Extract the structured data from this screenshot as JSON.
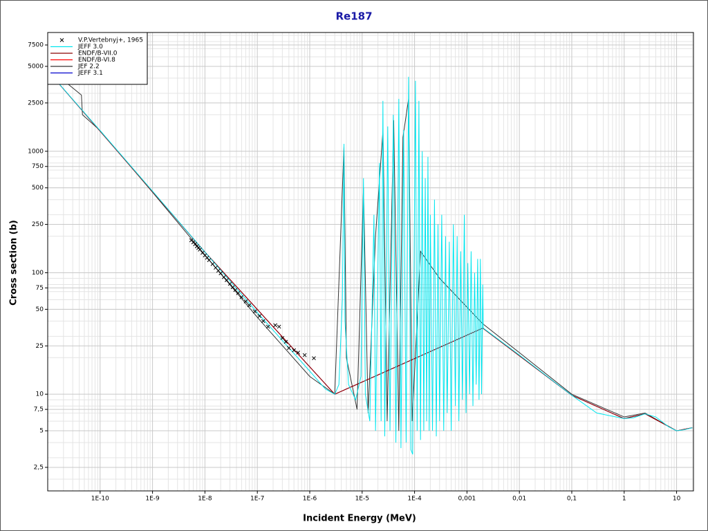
{
  "chart_data": {
    "type": "line",
    "title": "Re187",
    "x_label": "Incident Energy (MeV)",
    "y_label": "Cross section (b)",
    "x_log": true,
    "y_log": true,
    "grid": true,
    "legend": "upper left",
    "xlim": [
      1e-11,
      21
    ],
    "ylim": [
      1.6,
      9500
    ],
    "xticks": [
      {
        "value": 1e-10,
        "label": "1E-10"
      },
      {
        "value": 1e-09,
        "label": "1E-9"
      },
      {
        "value": 1e-08,
        "label": "1E-8"
      },
      {
        "value": 1e-07,
        "label": "1E-7"
      },
      {
        "value": 1e-06,
        "label": "1E-6"
      },
      {
        "value": 1e-05,
        "label": "1E-5"
      },
      {
        "value": 0.0001,
        "label": "1E-4"
      },
      {
        "value": 0.001,
        "label": "0,001"
      },
      {
        "value": 0.01,
        "label": "0,01"
      },
      {
        "value": 0.1,
        "label": "0,1"
      },
      1,
      10
    ],
    "yticks": [
      {
        "value": 2.5,
        "label": "2,5"
      },
      5,
      {
        "value": 7.5,
        "label": "7,5"
      },
      10,
      25,
      50,
      75,
      100,
      250,
      500,
      750,
      1000,
      2500,
      5000,
      7500
    ],
    "series": [
      {
        "name": "V.P.Vertebnyj+, 1965",
        "type": "scatter",
        "marker": "x",
        "color": "#000000",
        "x": [
          5.5e-09,
          6e-09,
          6.5e-09,
          7e-09,
          7.5e-09,
          8e-09,
          9e-09,
          1e-08,
          1.1e-08,
          1.2e-08,
          1.4e-08,
          1.6e-08,
          1.8e-08,
          2e-08,
          2.3e-08,
          2.6e-08,
          3e-08,
          3.4e-08,
          3.8e-08,
          4.3e-08,
          5e-08,
          6e-08,
          7e-08,
          9e-08,
          1.1e-07,
          1.3e-07,
          1.6e-07,
          2.2e-07,
          2.6e-07,
          3e-07,
          3.5e-07,
          4e-07,
          5e-07,
          6e-07,
          8e-07,
          1.2e-06
        ],
        "values": [
          185,
          178,
          172,
          165,
          160,
          155,
          146,
          139,
          133,
          127,
          118,
          110,
          104,
          99,
          92,
          87,
          81,
          76,
          72,
          68,
          63,
          58,
          54,
          48,
          44,
          40,
          36,
          37,
          36,
          29,
          27,
          24,
          23,
          22,
          21,
          19.8
        ]
      },
      {
        "name": "JEFF 3.0",
        "type": "line",
        "color": "#00e5ee",
        "x": [
          1.2e-11,
          1e-10,
          1e-09,
          1e-08,
          1e-07,
          1e-06,
          2e-06,
          3e-06,
          3.6e-06,
          4.2e-06,
          4.5e-06,
          4.7e-06,
          5.5e-06,
          7.5e-06,
          9.5e-06,
          1.06e-05,
          1.15e-05,
          1.4e-05,
          1.68e-05,
          1.8e-05,
          2.14e-05,
          2.3e-05,
          2.49e-05,
          2.7e-05,
          3.08e-05,
          3.4e-05,
          3.93e-05,
          4.4e-05,
          5.01e-05,
          5.5e-05,
          6.2e-05,
          6.9e-05,
          7.69e-05,
          8.5e-05,
          9.2e-05,
          0.000104,
          0.000112,
          0.000121,
          0.00013,
          0.00014,
          0.00015,
          0.00016,
          0.00017,
          0.00018,
          0.00019,
          0.0002,
          0.00022,
          0.00024,
          0.00026,
          0.00028,
          0.0003,
          0.00033,
          0.00036,
          0.00039,
          0.00042,
          0.00046,
          0.0005,
          0.00055,
          0.0006,
          0.00065,
          0.0007,
          0.00076,
          0.00082,
          0.00089,
          0.00096,
          0.00104,
          0.00112,
          0.0012,
          0.0013,
          0.0014,
          0.0015,
          0.0016,
          0.0017,
          0.0018,
          0.0019,
          0.002,
          0.00205,
          0.01,
          0.1,
          0.3,
          1,
          1.5,
          2.5,
          4,
          7,
          10,
          14,
          20
        ],
        "values": [
          4200,
          1480,
          470,
          148,
          47,
          15.5,
          11,
          10,
          12,
          60,
          1150,
          40,
          12,
          9,
          14,
          600,
          10,
          6,
          300,
          5,
          800,
          6,
          2600,
          4.5,
          1600,
          5,
          2000,
          4,
          2700,
          3.6,
          1500,
          4,
          4100,
          3.5,
          3.2,
          3800,
          5,
          2600,
          4.2,
          1000,
          5,
          600,
          6,
          900,
          5,
          300,
          5,
          400,
          4.5,
          250,
          6,
          300,
          5,
          200,
          7,
          180,
          5,
          250,
          8,
          200,
          6,
          150,
          9,
          300,
          7,
          120,
          10,
          150,
          8,
          100,
          12,
          130,
          9,
          130,
          10,
          80,
          35,
          21,
          9.8,
          7,
          6.3,
          6.4,
          6.9,
          6.5,
          5.4,
          5.0,
          5.1,
          5.3
        ]
      },
      {
        "name": "ENDF/B-VII.0",
        "type": "line",
        "color": "#8b0000",
        "x": [
          1.2e-11,
          1e-08,
          3e-06,
          0.002,
          0.1,
          1,
          2.5,
          10,
          20
        ],
        "values": [
          4200,
          148,
          10,
          35,
          9.8,
          6.3,
          6.9,
          5,
          5.3
        ]
      },
      {
        "name": "ENDF/B-VI.8",
        "type": "line",
        "color": "#ff0000",
        "x": [
          1.2e-11,
          1e-08,
          3e-06,
          0.002,
          0.1,
          1,
          2.5,
          10,
          20
        ],
        "values": [
          4200,
          148,
          10,
          35,
          9.8,
          6.3,
          6.9,
          5,
          5.3
        ]
      },
      {
        "name": "JEF 2.2",
        "type": "line",
        "color": "#333333",
        "x": [
          1.2e-11,
          4.4e-11,
          4.6e-11,
          1e-10,
          1e-09,
          1e-08,
          1e-07,
          1e-06,
          3e-06,
          4.5e-06,
          5e-06,
          8e-06,
          1.06e-05,
          1.3e-05,
          1.8e-05,
          2.5e-05,
          3e-05,
          4e-05,
          5e-05,
          6e-05,
          7.7e-05,
          9e-05,
          0.00013,
          0.0003,
          0.002,
          0.01,
          0.1,
          1,
          2.5,
          10,
          20
        ],
        "values": [
          4600,
          2900,
          2000,
          1480,
          460,
          140,
          43,
          14,
          10,
          1100,
          20,
          7.5,
          500,
          7,
          200,
          1500,
          6,
          1800,
          5,
          1300,
          2700,
          6,
          150,
          90,
          38,
          22,
          10,
          6.5,
          7,
          5,
          5.3
        ]
      },
      {
        "name": "JEFF 3.1",
        "type": "line",
        "color": "#0000cd",
        "x": [
          1.2e-11,
          1e-08,
          3e-06,
          0.002,
          0.1,
          1,
          2.5,
          10,
          20
        ],
        "values": [
          4200,
          148,
          10,
          35,
          9.8,
          6.3,
          6.9,
          5,
          5.3
        ]
      }
    ]
  }
}
